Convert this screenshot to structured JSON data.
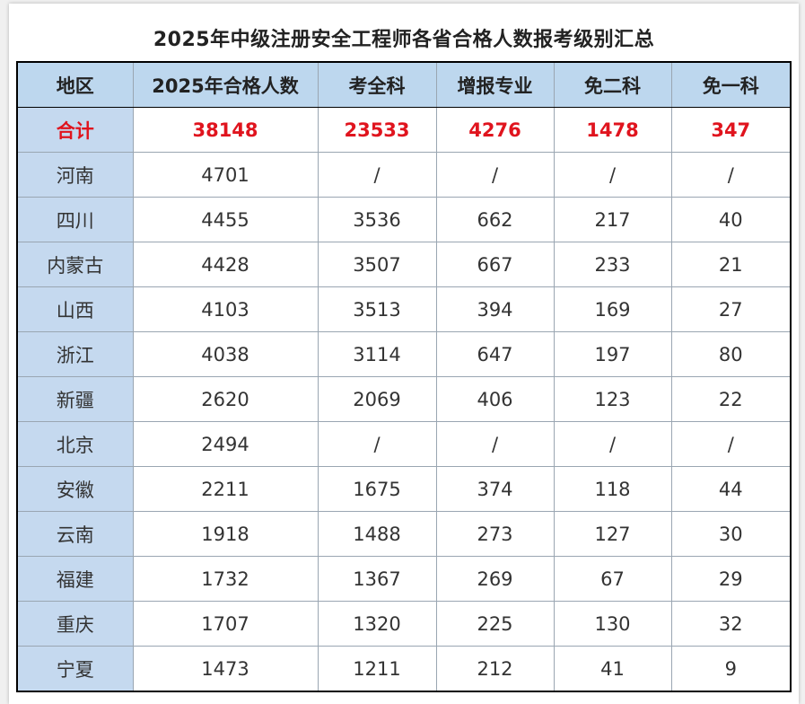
{
  "title": "2025年中级注册安全工程师各省合格人数报考级别汇总",
  "headers": [
    "地区",
    "2025年合格人数",
    "考全科",
    "增报专业",
    "免二科",
    "免一科"
  ],
  "rows": [
    [
      "合计",
      "38148",
      "23533",
      "4276",
      "1478",
      "347"
    ],
    [
      "河南",
      "4701",
      "/",
      "/",
      "/",
      "/"
    ],
    [
      "四川",
      "4455",
      "3536",
      "662",
      "217",
      "40"
    ],
    [
      "内蒙古",
      "4428",
      "3507",
      "667",
      "233",
      "21"
    ],
    [
      "山西",
      "4103",
      "3513",
      "394",
      "169",
      "27"
    ],
    [
      "浙江",
      "4038",
      "3114",
      "647",
      "197",
      "80"
    ],
    [
      "新疆",
      "2620",
      "2069",
      "406",
      "123",
      "22"
    ],
    [
      "北京",
      "2494",
      "/",
      "/",
      "/",
      "/"
    ],
    [
      "安徽",
      "2211",
      "1675",
      "374",
      "118",
      "44"
    ],
    [
      "云南",
      "1918",
      "1488",
      "273",
      "127",
      "30"
    ],
    [
      "福建",
      "1732",
      "1367",
      "269",
      "67",
      "29"
    ],
    [
      "重庆",
      "1707",
      "1320",
      "225",
      "130",
      "32"
    ],
    [
      "宁夏",
      "1473",
      "1211",
      "212",
      "41",
      "9"
    ]
  ],
  "colors": {
    "header_bg": "#bdd7ee",
    "region_bg": "#c5d9ef",
    "total_text": "#e0141e"
  }
}
